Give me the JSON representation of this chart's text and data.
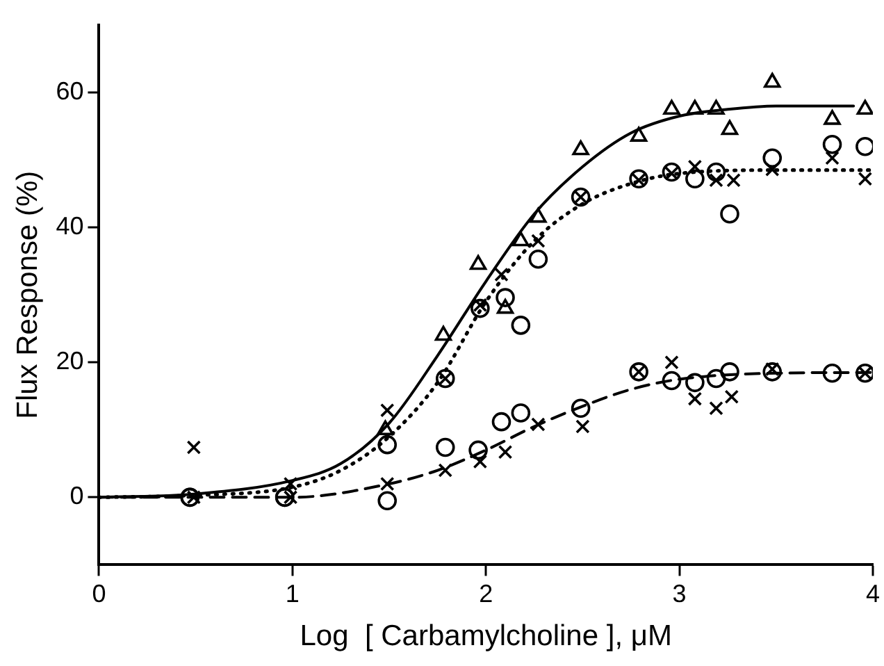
{
  "chart_data": {
    "type": "scatter",
    "xlabel": "Log  [ Carbamylcholine ], μM",
    "ylabel": "Flux Response (%)",
    "xlim": [
      0,
      4
    ],
    "ylim": [
      -10,
      70
    ],
    "xticks": [
      0,
      1,
      2,
      3,
      4
    ],
    "yticks": [
      0,
      20,
      40,
      60
    ],
    "grid": false,
    "legend": false,
    "series": [
      {
        "type": "scatter",
        "marker": "triangle",
        "color": "#000000",
        "x": [
          1.48,
          1.78,
          1.96,
          2.1,
          2.18,
          2.27,
          2.49,
          2.79,
          2.96,
          3.08,
          3.19,
          3.26,
          3.48,
          3.79,
          3.96
        ],
        "values": [
          10,
          24,
          34.5,
          28,
          38,
          41.5,
          51.5,
          53.5,
          57.5,
          57.5,
          57.5,
          54.5,
          61.5,
          56,
          57.5
        ]
      },
      {
        "type": "scatter",
        "marker": "circle",
        "color": "#000000",
        "x": [
          0.47,
          0.96,
          1.49,
          1.79,
          1.97,
          2.1,
          2.18,
          2.27,
          2.49,
          2.79,
          2.96,
          3.08,
          3.19,
          3.26,
          3.48,
          3.79,
          3.96
        ],
        "values": [
          0,
          0,
          7.8,
          17.6,
          28,
          29.6,
          25.5,
          35.3,
          44.5,
          47.2,
          48.2,
          47.2,
          48.2,
          42,
          50.3,
          52.3,
          52
        ]
      },
      {
        "type": "scatter",
        "marker": "cross",
        "color": "#000000",
        "x": [
          0.49,
          0.99,
          1.49,
          1.79,
          1.97,
          2.08,
          2.27,
          2.49,
          2.79,
          2.96,
          3.08,
          3.19,
          3.28,
          3.48,
          3.79,
          3.96
        ],
        "values": [
          7.4,
          2,
          12.9,
          17.6,
          28.5,
          33,
          38,
          44.5,
          47,
          48,
          49,
          47,
          47,
          48.6,
          50.3,
          47.2
        ]
      },
      {
        "type": "scatter",
        "marker": "circle",
        "color": "#000000",
        "x": [
          0.47,
          0.96,
          1.49,
          1.79,
          1.96,
          2.08,
          2.18,
          2.49,
          2.79,
          2.96,
          3.08,
          3.19,
          3.26,
          3.48,
          3.79,
          3.96
        ],
        "values": [
          0,
          0,
          -0.5,
          7.4,
          7,
          11.2,
          12.5,
          13.2,
          18.6,
          17.3,
          17,
          17.6,
          18.6,
          18.6,
          18.4,
          18.4
        ]
      },
      {
        "type": "scatter",
        "marker": "cross",
        "color": "#000000",
        "x": [
          0.49,
          0.99,
          1.49,
          1.79,
          1.97,
          2.1,
          2.27,
          2.5,
          2.79,
          2.96,
          3.08,
          3.19,
          3.27,
          3.48,
          3.96
        ],
        "values": [
          0,
          0,
          2,
          4,
          5.3,
          6.7,
          10.8,
          10.5,
          18.6,
          20,
          14.6,
          13.2,
          14.9,
          19,
          18.4
        ]
      },
      {
        "type": "line",
        "line_style": "solid",
        "color": "#000000",
        "x": [
          0,
          0.5,
          1,
          1.25,
          1.5,
          1.75,
          2,
          2.25,
          2.5,
          2.75,
          3,
          3.25,
          3.5,
          3.9
        ],
        "values": [
          0,
          0.5,
          2.5,
          5,
          11,
          21,
          32,
          42,
          49,
          54,
          56.5,
          57.5,
          58,
          58
        ]
      },
      {
        "type": "line",
        "line_style": "dotted",
        "color": "#000000",
        "x": [
          0,
          0.5,
          1,
          1.25,
          1.5,
          1.75,
          2,
          2.25,
          2.5,
          2.75,
          3,
          3.5,
          4
        ],
        "values": [
          0,
          0.3,
          1.5,
          4,
          9,
          17,
          29,
          38,
          43.5,
          46.5,
          48,
          48.5,
          48.5
        ]
      },
      {
        "type": "line",
        "line_style": "dashed",
        "color": "#000000",
        "x": [
          0,
          0.5,
          1,
          1.5,
          1.75,
          2,
          2.25,
          2.5,
          2.75,
          3,
          3.5,
          4
        ],
        "values": [
          0,
          0,
          0,
          2,
          4,
          7,
          10.5,
          13.5,
          16,
          17.5,
          18.4,
          18.5
        ]
      }
    ]
  }
}
